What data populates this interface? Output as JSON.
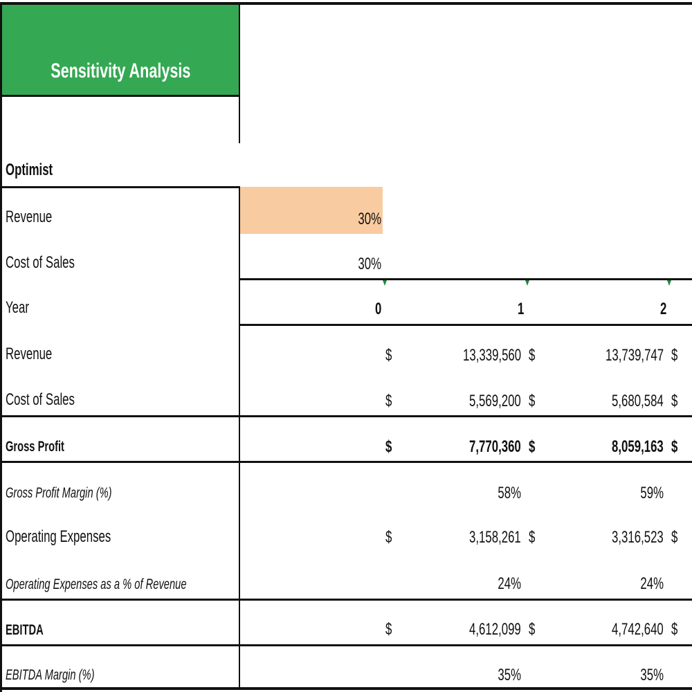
{
  "title": "Sensitivity Analysis",
  "scenario": "Optimist",
  "inputs": {
    "revenue_label": "Revenue",
    "revenue_value": "30%",
    "cost_label": "Cost of Sales",
    "cost_value": "30%"
  },
  "year_row": {
    "label": "Year",
    "values": [
      "0",
      "1",
      "2"
    ]
  },
  "currency": "$",
  "rows": {
    "revenue": {
      "label": "Revenue",
      "y1": "13,339,560",
      "y2": "13,739,747"
    },
    "cost_of_sales": {
      "label": "Cost of Sales",
      "y1": "5,569,200",
      "y2": "5,680,584"
    },
    "gross_profit": {
      "label": "Gross Profit",
      "y1": "7,770,360",
      "y2": "8,059,163"
    },
    "gross_margin": {
      "label": "Gross Profit Margin (%)",
      "y1": "58%",
      "y2": "59%"
    },
    "opex": {
      "label": "Operating Expenses",
      "y1": "3,158,261",
      "y2": "3,316,523"
    },
    "opex_pct": {
      "label": "Operating Expenses as a % of Revenue",
      "y1": "24%",
      "y2": "24%"
    },
    "ebitda": {
      "label": "EBITDA",
      "y1": "4,612,099",
      "y2": "4,742,640"
    },
    "ebitda_margin": {
      "label": "EBITDA Margin (%)",
      "y1": "35%",
      "y2": "35%"
    }
  },
  "colors": {
    "title_bg": "#34a853",
    "input_bg": "#f8cba0",
    "marker": "#1f8a3c"
  }
}
